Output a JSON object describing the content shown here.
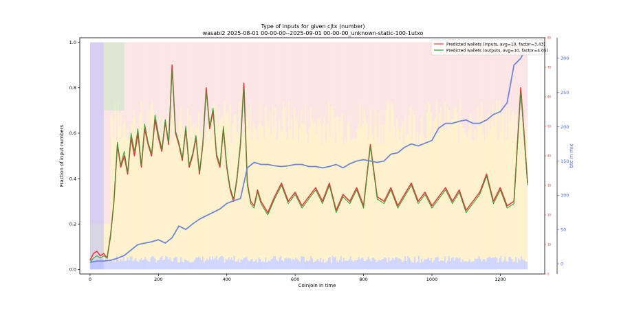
{
  "chart_data": {
    "type": "line",
    "title": "Type of inputs for given cjtx (number)",
    "subtitle": "wasabi2 2025-08-01 00-00-00--2025-09-01 00-00-00_unknown-static-100-1utxo",
    "xlabel": "Coinjoin in time",
    "ylabel": "Fraction of input numbers",
    "y2label": "btc in mix",
    "xlim": [
      -30,
      1330
    ],
    "ylim": [
      -0.02,
      1.02
    ],
    "y2lim": [
      -15,
      330
    ],
    "y3lim": [
      0,
      80
    ],
    "x_ticks": [
      0,
      200,
      400,
      600,
      800,
      1000,
      1200
    ],
    "y_ticks": [
      0.0,
      0.2,
      0.4,
      0.6,
      0.8,
      1.0
    ],
    "y_tick_labels": [
      "0.0",
      "0.2",
      "0.4",
      "0.6",
      "0.8",
      "1.0"
    ],
    "y2_ticks": [
      0,
      50,
      100,
      150,
      200,
      250,
      300
    ],
    "y3_ticks": [
      0,
      10,
      20,
      30,
      40,
      50,
      60,
      70,
      80
    ],
    "legend_position": "top-right",
    "colors": {
      "inputs": "#e8383b",
      "outputs": "#2ca02c",
      "btc": "#6f86d6",
      "y2axis": "#4169e1",
      "y3axis": "#d62728",
      "bg_red": "#f7c6c6",
      "bg_yellow": "#fde7a4",
      "bg_blue": "#aab4ff",
      "bg_green": "#bfe6bf"
    },
    "series": [
      {
        "name": "Predicted wallets (inputs, avg=10, factor=3.43)",
        "x": [
          0,
          10,
          20,
          30,
          40,
          50,
          60,
          70,
          80,
          90,
          100,
          110,
          120,
          130,
          140,
          150,
          160,
          170,
          180,
          190,
          200,
          210,
          220,
          230,
          240,
          250,
          260,
          270,
          280,
          290,
          300,
          310,
          320,
          330,
          340,
          350,
          360,
          370,
          380,
          390,
          400,
          410,
          420,
          430,
          440,
          450,
          460,
          470,
          480,
          490,
          500,
          520,
          540,
          560,
          580,
          600,
          620,
          640,
          660,
          680,
          700,
          720,
          740,
          760,
          780,
          800,
          820,
          840,
          860,
          880,
          900,
          920,
          940,
          960,
          980,
          1000,
          1020,
          1040,
          1060,
          1080,
          1100,
          1120,
          1140,
          1160,
          1180,
          1200,
          1220,
          1240,
          1260,
          1280
        ],
        "values": [
          0.04,
          0.07,
          0.08,
          0.06,
          0.07,
          0.05,
          0.15,
          0.3,
          0.55,
          0.45,
          0.5,
          0.42,
          0.58,
          0.5,
          0.6,
          0.45,
          0.62,
          0.55,
          0.5,
          0.66,
          0.58,
          0.52,
          0.65,
          0.55,
          0.9,
          0.6,
          0.55,
          0.48,
          0.62,
          0.45,
          0.5,
          0.58,
          0.42,
          0.55,
          0.8,
          0.62,
          0.7,
          0.5,
          0.45,
          0.62,
          0.45,
          0.35,
          0.3,
          0.4,
          0.55,
          0.82,
          0.38,
          0.3,
          0.28,
          0.35,
          0.3,
          0.25,
          0.32,
          0.38,
          0.3,
          0.34,
          0.28,
          0.32,
          0.36,
          0.3,
          0.38,
          0.26,
          0.33,
          0.3,
          0.36,
          0.28,
          0.55,
          0.32,
          0.3,
          0.36,
          0.28,
          0.33,
          0.38,
          0.3,
          0.34,
          0.28,
          0.32,
          0.36,
          0.3,
          0.35,
          0.26,
          0.3,
          0.34,
          0.42,
          0.3,
          0.36,
          0.28,
          0.3,
          0.8,
          0.38
        ]
      },
      {
        "name": "Predicted wallets (outputs, avg=10, factor=4.05)",
        "x": [
          0,
          10,
          20,
          30,
          40,
          50,
          60,
          70,
          80,
          90,
          100,
          110,
          120,
          130,
          140,
          150,
          160,
          170,
          180,
          190,
          200,
          210,
          220,
          230,
          240,
          250,
          260,
          270,
          280,
          290,
          300,
          310,
          320,
          330,
          340,
          350,
          360,
          370,
          380,
          390,
          400,
          410,
          420,
          430,
          440,
          450,
          460,
          470,
          480,
          490,
          500,
          520,
          540,
          560,
          580,
          600,
          620,
          640,
          660,
          680,
          700,
          720,
          740,
          760,
          780,
          800,
          820,
          840,
          860,
          880,
          900,
          920,
          940,
          960,
          980,
          1000,
          1020,
          1040,
          1060,
          1080,
          1100,
          1120,
          1140,
          1160,
          1180,
          1200,
          1220,
          1240,
          1260,
          1280
        ],
        "values": [
          0.03,
          0.05,
          0.06,
          0.05,
          0.06,
          0.05,
          0.14,
          0.3,
          0.56,
          0.46,
          0.52,
          0.43,
          0.6,
          0.52,
          0.62,
          0.46,
          0.64,
          0.56,
          0.51,
          0.68,
          0.6,
          0.53,
          0.66,
          0.56,
          0.88,
          0.61,
          0.56,
          0.49,
          0.63,
          0.46,
          0.51,
          0.59,
          0.43,
          0.56,
          0.78,
          0.63,
          0.71,
          0.51,
          0.46,
          0.63,
          0.46,
          0.36,
          0.31,
          0.41,
          0.56,
          0.8,
          0.37,
          0.29,
          0.27,
          0.34,
          0.29,
          0.24,
          0.31,
          0.37,
          0.29,
          0.33,
          0.27,
          0.31,
          0.35,
          0.29,
          0.37,
          0.25,
          0.32,
          0.29,
          0.35,
          0.27,
          0.54,
          0.31,
          0.29,
          0.35,
          0.27,
          0.32,
          0.37,
          0.29,
          0.33,
          0.27,
          0.31,
          0.35,
          0.29,
          0.34,
          0.25,
          0.29,
          0.33,
          0.41,
          0.29,
          0.35,
          0.27,
          0.29,
          0.78,
          0.37
        ]
      },
      {
        "name": "btc in mix",
        "axis": "right",
        "x": [
          0,
          20,
          40,
          60,
          80,
          100,
          120,
          140,
          160,
          180,
          200,
          220,
          240,
          260,
          280,
          300,
          320,
          340,
          360,
          380,
          400,
          420,
          440,
          460,
          480,
          500,
          520,
          540,
          560,
          580,
          600,
          620,
          640,
          660,
          680,
          700,
          720,
          740,
          760,
          780,
          800,
          820,
          840,
          860,
          880,
          900,
          920,
          940,
          960,
          980,
          1000,
          1020,
          1040,
          1060,
          1080,
          1100,
          1120,
          1140,
          1160,
          1180,
          1200,
          1220,
          1240,
          1260,
          1270
        ],
        "values": [
          2,
          4,
          4,
          5,
          8,
          12,
          20,
          28,
          30,
          32,
          35,
          30,
          38,
          55,
          50,
          58,
          65,
          70,
          75,
          80,
          88,
          92,
          95,
          140,
          148,
          145,
          145,
          143,
          142,
          143,
          145,
          145,
          142,
          142,
          140,
          142,
          145,
          140,
          146,
          150,
          152,
          150,
          148,
          150,
          160,
          162,
          170,
          175,
          172,
          176,
          180,
          198,
          205,
          205,
          208,
          210,
          205,
          205,
          210,
          218,
          222,
          235,
          290,
          300,
          310
        ]
      }
    ]
  }
}
